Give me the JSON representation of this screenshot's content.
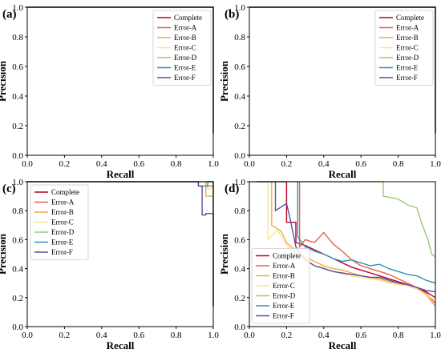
{
  "figure": {
    "background": "#ffffff"
  },
  "series_colors": {
    "Complete": "#b8002a",
    "Error-A": "#e8604a",
    "Error-B": "#f1a94a",
    "Error-C": "#f5e88e",
    "Error-D": "#9ccb6c",
    "Error-E": "#2f93b8",
    "Error-F": "#5a4ea6"
  },
  "chart_data": [
    {
      "panel": "(a)",
      "type": "line",
      "xlabel": "Recall",
      "ylabel": "Precision",
      "xlim": [
        0,
        1
      ],
      "ylim": [
        0,
        1
      ],
      "xticks": [
        "0.0",
        "0.2",
        "0.4",
        "0.6",
        "0.8",
        "1.0"
      ],
      "yticks": [
        "0.0",
        "0.2",
        "0.4",
        "0.6",
        "0.8",
        "1.0"
      ],
      "legend_position": "top-right",
      "series": [
        {
          "name": "Complete",
          "points": [
            [
              0,
              1
            ],
            [
              1,
              1
            ],
            [
              1,
              0.15
            ]
          ]
        },
        {
          "name": "Error-A",
          "points": [
            [
              0,
              1
            ],
            [
              1,
              1
            ],
            [
              1,
              0.15
            ]
          ]
        },
        {
          "name": "Error-B",
          "points": [
            [
              0,
              1
            ],
            [
              1,
              1
            ],
            [
              1,
              0.15
            ]
          ]
        },
        {
          "name": "Error-C",
          "points": [
            [
              0,
              1
            ],
            [
              1,
              1
            ],
            [
              1,
              0.15
            ]
          ]
        },
        {
          "name": "Error-D",
          "points": [
            [
              0,
              1
            ],
            [
              1,
              1
            ],
            [
              1,
              0.15
            ]
          ]
        },
        {
          "name": "Error-E",
          "points": [
            [
              0,
              1
            ],
            [
              1,
              1
            ],
            [
              1,
              0.15
            ]
          ]
        },
        {
          "name": "Error-F",
          "points": [
            [
              0,
              1
            ],
            [
              1,
              1
            ],
            [
              1,
              0.15
            ]
          ]
        }
      ]
    },
    {
      "panel": "(b)",
      "type": "line",
      "xlabel": "Recall",
      "ylabel": "Precision",
      "xlim": [
        0,
        1
      ],
      "ylim": [
        0,
        1
      ],
      "xticks": [
        "0.0",
        "0.2",
        "0.4",
        "0.6",
        "0.8",
        "1.0"
      ],
      "yticks": [
        "0.0",
        "0.2",
        "0.4",
        "0.6",
        "0.8",
        "1.0"
      ],
      "legend_position": "top-right",
      "series": [
        {
          "name": "Complete",
          "points": [
            [
              0,
              1
            ],
            [
              1,
              1
            ],
            [
              1,
              0.15
            ]
          ]
        },
        {
          "name": "Error-A",
          "points": [
            [
              0,
              1
            ],
            [
              1,
              1
            ],
            [
              1,
              0.15
            ]
          ]
        },
        {
          "name": "Error-B",
          "points": [
            [
              0,
              1
            ],
            [
              1,
              1
            ],
            [
              1,
              0.15
            ]
          ]
        },
        {
          "name": "Error-C",
          "points": [
            [
              0,
              1
            ],
            [
              1,
              1
            ],
            [
              1,
              0.15
            ]
          ]
        },
        {
          "name": "Error-D",
          "points": [
            [
              0,
              1
            ],
            [
              1,
              1
            ],
            [
              1,
              0.15
            ]
          ]
        },
        {
          "name": "Error-E",
          "points": [
            [
              0,
              1
            ],
            [
              1,
              1
            ],
            [
              1,
              0.15
            ]
          ]
        },
        {
          "name": "Error-F",
          "points": [
            [
              0,
              1
            ],
            [
              1,
              1
            ],
            [
              1,
              0.15
            ]
          ]
        }
      ]
    },
    {
      "panel": "(c)",
      "type": "line",
      "xlabel": "Recall",
      "ylabel": "Precision",
      "xlim": [
        0,
        1
      ],
      "ylim": [
        0,
        1
      ],
      "xticks": [
        "0.0",
        "0.2",
        "0.4",
        "0.6",
        "0.8",
        "1.0"
      ],
      "yticks": [
        "0.0",
        "0.2",
        "0.4",
        "0.6",
        "0.8",
        "1.0"
      ],
      "legend_position": "top-left",
      "series": [
        {
          "name": "Complete",
          "points": [
            [
              0,
              1
            ],
            [
              1,
              1
            ],
            [
              1,
              0.14
            ]
          ]
        },
        {
          "name": "Error-A",
          "points": [
            [
              0,
              1
            ],
            [
              0.96,
              1
            ],
            [
              0.96,
              0.97
            ],
            [
              1,
              0.97
            ],
            [
              1,
              0.14
            ]
          ]
        },
        {
          "name": "Error-B",
          "points": [
            [
              0,
              1
            ],
            [
              0.96,
              1
            ],
            [
              0.96,
              0.9
            ],
            [
              1,
              0.9
            ],
            [
              1,
              0.14
            ]
          ]
        },
        {
          "name": "Error-C",
          "points": [
            [
              0,
              1
            ],
            [
              0.97,
              1
            ],
            [
              0.97,
              0.95
            ],
            [
              1,
              0.95
            ],
            [
              1,
              0.14
            ]
          ]
        },
        {
          "name": "Error-D",
          "points": [
            [
              0,
              1
            ],
            [
              1,
              1
            ],
            [
              1,
              0.14
            ]
          ]
        },
        {
          "name": "Error-E",
          "points": [
            [
              0,
              1
            ],
            [
              0.92,
              1
            ],
            [
              0.92,
              0.97
            ],
            [
              0.97,
              0.97
            ],
            [
              0.97,
              1
            ],
            [
              1,
              1
            ],
            [
              1,
              0.14
            ]
          ]
        },
        {
          "name": "Error-F",
          "points": [
            [
              0,
              1
            ],
            [
              0.92,
              1
            ],
            [
              0.92,
              0.97
            ],
            [
              0.94,
              0.97
            ],
            [
              0.94,
              0.77
            ],
            [
              0.96,
              0.77
            ],
            [
              0.96,
              0.78
            ],
            [
              1,
              0.78
            ],
            [
              1,
              0.14
            ]
          ]
        }
      ]
    },
    {
      "panel": "(d)",
      "type": "line",
      "xlabel": "Recall",
      "ylabel": "Precision",
      "xlim": [
        0,
        1
      ],
      "ylim": [
        0,
        1
      ],
      "xticks": [
        "0.0",
        "0.2",
        "0.4",
        "0.6",
        "0.8",
        "1.0"
      ],
      "yticks": [
        "0.0",
        "0.2",
        "0.4",
        "0.6",
        "0.8",
        "1.0"
      ],
      "legend_position": "bottom-left",
      "series": [
        {
          "name": "Complete",
          "points": [
            [
              0.14,
              1
            ],
            [
              0.2,
              1
            ],
            [
              0.2,
              0.72
            ],
            [
              0.25,
              0.72
            ],
            [
              0.25,
              0.58
            ],
            [
              0.3,
              0.56
            ],
            [
              0.35,
              0.53
            ],
            [
              0.4,
              0.5
            ],
            [
              0.45,
              0.47
            ],
            [
              0.5,
              0.44
            ],
            [
              0.55,
              0.41
            ],
            [
              0.6,
              0.39
            ],
            [
              0.65,
              0.37
            ],
            [
              0.7,
              0.35
            ],
            [
              0.75,
              0.33
            ],
            [
              0.8,
              0.31
            ],
            [
              0.85,
              0.29
            ],
            [
              0.9,
              0.27
            ],
            [
              0.95,
              0.24
            ],
            [
              1.0,
              0.2
            ]
          ]
        },
        {
          "name": "Error-A",
          "points": [
            [
              0.27,
              1
            ],
            [
              0.27,
              0.55
            ],
            [
              0.3,
              0.6
            ],
            [
              0.35,
              0.58
            ],
            [
              0.4,
              0.65
            ],
            [
              0.45,
              0.57
            ],
            [
              0.5,
              0.52
            ],
            [
              0.55,
              0.46
            ],
            [
              0.6,
              0.42
            ],
            [
              0.65,
              0.4
            ],
            [
              0.7,
              0.38
            ],
            [
              0.75,
              0.36
            ],
            [
              0.8,
              0.33
            ],
            [
              0.85,
              0.3
            ],
            [
              0.9,
              0.27
            ],
            [
              0.95,
              0.23
            ],
            [
              1.0,
              0.16
            ]
          ]
        },
        {
          "name": "Error-B",
          "points": [
            [
              0.12,
              1
            ],
            [
              0.12,
              0.7
            ],
            [
              0.17,
              0.66
            ],
            [
              0.2,
              0.58
            ],
            [
              0.25,
              0.52
            ],
            [
              0.3,
              0.48
            ],
            [
              0.35,
              0.45
            ],
            [
              0.4,
              0.42
            ],
            [
              0.45,
              0.4
            ],
            [
              0.5,
              0.39
            ],
            [
              0.55,
              0.37
            ],
            [
              0.6,
              0.35
            ],
            [
              0.65,
              0.34
            ],
            [
              0.7,
              0.33
            ],
            [
              0.75,
              0.31
            ],
            [
              0.8,
              0.3
            ],
            [
              0.85,
              0.28
            ],
            [
              0.9,
              0.26
            ],
            [
              0.95,
              0.22
            ],
            [
              1.0,
              0.14
            ]
          ]
        },
        {
          "name": "Error-C",
          "points": [
            [
              0.1,
              1
            ],
            [
              0.1,
              0.6
            ],
            [
              0.15,
              0.67
            ],
            [
              0.2,
              0.56
            ],
            [
              0.25,
              0.5
            ],
            [
              0.3,
              0.47
            ],
            [
              0.35,
              0.42
            ],
            [
              0.4,
              0.41
            ],
            [
              0.45,
              0.38
            ],
            [
              0.5,
              0.36
            ],
            [
              0.55,
              0.35
            ],
            [
              0.6,
              0.34
            ],
            [
              0.65,
              0.33
            ],
            [
              0.7,
              0.32
            ],
            [
              0.75,
              0.3
            ],
            [
              0.8,
              0.29
            ],
            [
              0.85,
              0.28
            ],
            [
              0.9,
              0.26
            ],
            [
              0.95,
              0.22
            ],
            [
              1.0,
              0.18
            ]
          ]
        },
        {
          "name": "Error-D",
          "points": [
            [
              0.0,
              1
            ],
            [
              0.72,
              1
            ],
            [
              0.72,
              0.9
            ],
            [
              0.8,
              0.88
            ],
            [
              0.85,
              0.84
            ],
            [
              0.9,
              0.82
            ],
            [
              0.93,
              0.7
            ],
            [
              0.96,
              0.6
            ],
            [
              0.98,
              0.5
            ],
            [
              1.0,
              0.48
            ]
          ]
        },
        {
          "name": "Error-E",
          "points": [
            [
              0.26,
              1
            ],
            [
              0.26,
              0.62
            ],
            [
              0.3,
              0.55
            ],
            [
              0.35,
              0.52
            ],
            [
              0.4,
              0.5
            ],
            [
              0.45,
              0.47
            ],
            [
              0.5,
              0.45
            ],
            [
              0.55,
              0.46
            ],
            [
              0.6,
              0.44
            ],
            [
              0.65,
              0.42
            ],
            [
              0.7,
              0.43
            ],
            [
              0.75,
              0.4
            ],
            [
              0.8,
              0.38
            ],
            [
              0.85,
              0.36
            ],
            [
              0.9,
              0.35
            ],
            [
              0.95,
              0.32
            ],
            [
              1.0,
              0.3
            ]
          ]
        },
        {
          "name": "Error-F",
          "points": [
            [
              0.04,
              1
            ],
            [
              0.14,
              1
            ],
            [
              0.14,
              0.8
            ],
            [
              0.2,
              0.85
            ],
            [
              0.22,
              0.74
            ],
            [
              0.25,
              0.55
            ],
            [
              0.3,
              0.46
            ],
            [
              0.35,
              0.42
            ],
            [
              0.4,
              0.4
            ],
            [
              0.45,
              0.38
            ],
            [
              0.5,
              0.37
            ],
            [
              0.55,
              0.36
            ],
            [
              0.6,
              0.35
            ],
            [
              0.65,
              0.34
            ],
            [
              0.7,
              0.34
            ],
            [
              0.75,
              0.32
            ],
            [
              0.8,
              0.3
            ],
            [
              0.85,
              0.29
            ],
            [
              0.9,
              0.27
            ],
            [
              0.95,
              0.25
            ],
            [
              1.0,
              0.24
            ]
          ]
        }
      ]
    }
  ]
}
